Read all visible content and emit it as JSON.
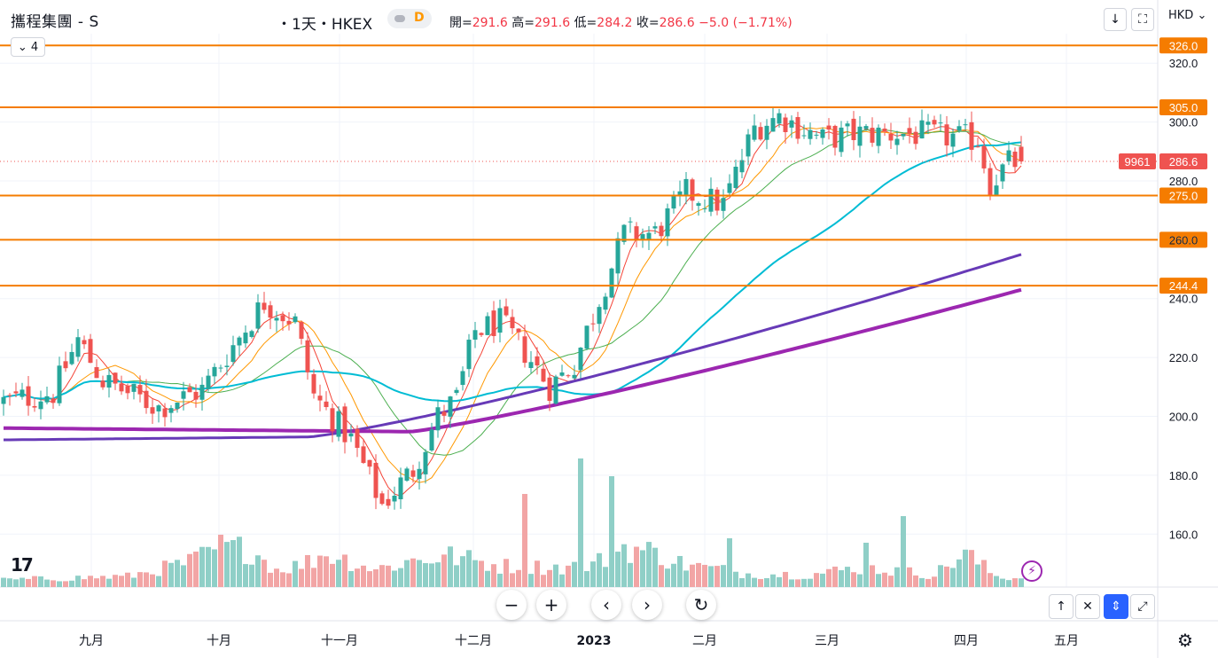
{
  "header": {
    "symbol_title": "攜程集團 - S",
    "interval_exchange": "・1天・HKEX",
    "chart_type_letter": "D",
    "ohlc": {
      "open_label": "開=",
      "open": "291.6",
      "high_label": "高=",
      "high": "291.6",
      "low_label": "低=",
      "low": "284.2",
      "close_label": "收=",
      "close": "286.6",
      "change": "−5.0 (−1.71%)"
    },
    "collapse_count": "4",
    "download_icon": "download-icon",
    "fullscreen_icon": "fullscreen-icon",
    "currency": "HKD"
  },
  "price_axis": {
    "current_price": "286.6",
    "symbol_code": "9961"
  },
  "nav": {
    "zoom_out": "−",
    "zoom_in": "+",
    "scroll_left": "‹",
    "scroll_right": "›",
    "reset": "↻"
  },
  "corner_buttons": [
    "↑",
    "✕",
    "⇕",
    "⤢"
  ],
  "time_axis": {
    "labels": [
      "九月",
      "十月",
      "十一月",
      "十二月",
      "2023",
      "二月",
      "三月",
      "四月",
      "五月"
    ]
  },
  "colors": {
    "up": "#26a69a",
    "down": "#ef5350",
    "vol_up": "#8fcfc7",
    "vol_down": "#f2a5a5",
    "hline": "#f57c00",
    "ma5": "#f44336",
    "ma10": "#ff9800",
    "ma20": "#4caf50",
    "ma50": "#00bcd4",
    "ma150": "#673ab7",
    "ma200": "#9c27b0"
  },
  "chart_data": {
    "type": "candlestick",
    "title": "攜程集團 - S",
    "ylim": [
      142,
      330
    ],
    "yticks": [
      160.0,
      180.0,
      200.0,
      220.0,
      240.0,
      260.0,
      280.0,
      300.0,
      320.0
    ],
    "x_labels": [
      "九月",
      "十月",
      "十一月",
      "十二月",
      "2023",
      "二月",
      "三月",
      "四月",
      "五月"
    ],
    "horizontal_levels": [
      326.0,
      305.0,
      275.0,
      260.0,
      244.4
    ],
    "last_price": 286.6,
    "n_bars": 165,
    "price_knots": [
      [
        0,
        205
      ],
      [
        8,
        208
      ],
      [
        12,
        226
      ],
      [
        16,
        212
      ],
      [
        25,
        203
      ],
      [
        32,
        209
      ],
      [
        37,
        224
      ],
      [
        42,
        239
      ],
      [
        47,
        232
      ],
      [
        50,
        207
      ],
      [
        56,
        192
      ],
      [
        61,
        170
      ],
      [
        66,
        182
      ],
      [
        70,
        200
      ],
      [
        73,
        206
      ],
      [
        76,
        229
      ],
      [
        80,
        232
      ],
      [
        84,
        222
      ],
      [
        88,
        210
      ],
      [
        92,
        218
      ],
      [
        96,
        240
      ],
      [
        100,
        262
      ],
      [
        105,
        262
      ],
      [
        110,
        276
      ],
      [
        116,
        272
      ],
      [
        121,
        298
      ],
      [
        125,
        302
      ],
      [
        132,
        294
      ],
      [
        137,
        296
      ],
      [
        146,
        296
      ],
      [
        152,
        295
      ],
      [
        157,
        294
      ],
      [
        159,
        279
      ],
      [
        162,
        286
      ],
      [
        164,
        286.6
      ]
    ],
    "volume_knots": [
      [
        0,
        8
      ],
      [
        20,
        12
      ],
      [
        30,
        28
      ],
      [
        35,
        45
      ],
      [
        40,
        42
      ],
      [
        44,
        20
      ],
      [
        48,
        25
      ],
      [
        52,
        38
      ],
      [
        60,
        20
      ],
      [
        66,
        30
      ],
      [
        72,
        35
      ],
      [
        80,
        24
      ],
      [
        90,
        22
      ],
      [
        95,
        25
      ],
      [
        100,
        45
      ],
      [
        104,
        40
      ],
      [
        110,
        25
      ],
      [
        120,
        15
      ],
      [
        130,
        14
      ],
      [
        138,
        22
      ],
      [
        144,
        18
      ],
      [
        150,
        14
      ],
      [
        155,
        38
      ],
      [
        160,
        12
      ],
      [
        164,
        10
      ]
    ],
    "volume_spikes": [
      [
        84,
        105
      ],
      [
        93,
        145
      ],
      [
        98,
        125
      ],
      [
        117,
        55
      ],
      [
        139,
        50
      ],
      [
        145,
        80
      ]
    ],
    "ma_end_values": {
      "ma5": 288,
      "ma10": 289,
      "ma20": 289,
      "ma50": 289.5,
      "ma150": 254,
      "ma200": 243
    }
  }
}
